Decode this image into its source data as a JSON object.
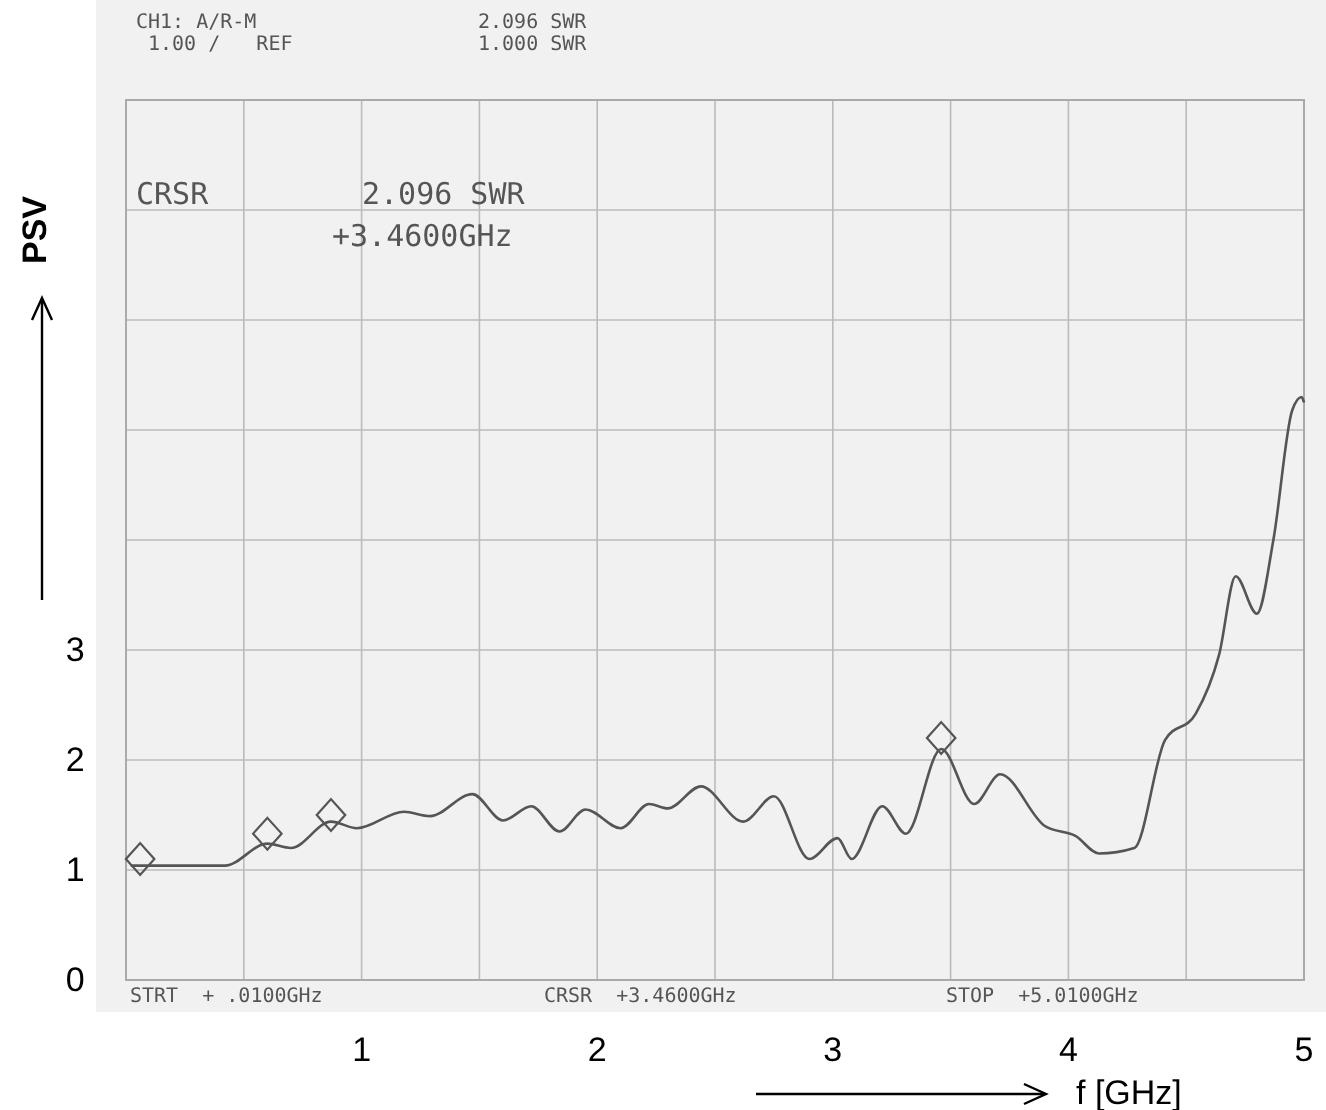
{
  "chart_data": {
    "type": "line",
    "xlabel": "f [GHz]",
    "ylabel": "PSV",
    "xlim": [
      0,
      5
    ],
    "ylim": [
      0,
      8
    ],
    "xticks": [
      {
        "value": 0.5,
        "label": null
      },
      1,
      {
        "value": 1.5,
        "label": null
      },
      2,
      {
        "value": 2.5,
        "label": null
      },
      3,
      {
        "value": 3.5,
        "label": null
      },
      4,
      {
        "value": 4.5,
        "label": null
      },
      5
    ],
    "yticks": [
      0,
      1,
      2,
      3,
      {
        "value": 4,
        "label": null
      },
      {
        "value": 5,
        "label": null
      },
      {
        "value": 6,
        "label": null
      },
      {
        "value": 7,
        "label": null
      },
      {
        "value": 8,
        "label": null
      }
    ],
    "grid": true,
    "series": [
      {
        "color": "#555555",
        "marker": "none",
        "x": [
          0.02,
          0.42,
          0.6,
          0.7,
          0.87,
          0.98,
          1.18,
          1.29,
          1.47,
          1.6,
          1.72,
          1.84,
          1.95,
          2.1,
          2.22,
          2.3,
          2.44,
          2.62,
          2.75,
          2.9,
          3.02,
          3.08,
          3.21,
          3.31,
          3.46,
          3.6,
          3.71,
          3.9,
          4.03,
          4.13,
          4.28,
          4.41,
          4.54,
          4.64,
          4.71,
          4.8,
          4.87,
          4.95,
          4.99,
          5.0
        ],
        "values": [
          1.04,
          1.04,
          1.24,
          1.2,
          1.44,
          1.38,
          1.53,
          1.49,
          1.69,
          1.45,
          1.58,
          1.35,
          1.55,
          1.38,
          1.6,
          1.56,
          1.76,
          1.44,
          1.67,
          1.1,
          1.29,
          1.1,
          1.58,
          1.33,
          2.1,
          1.6,
          1.87,
          1.4,
          1.31,
          1.15,
          1.2,
          2.18,
          2.42,
          2.96,
          3.67,
          3.33,
          4.0,
          5.18,
          5.3,
          5.25
        ]
      },
      {
        "type": "scatter",
        "color": "#555555",
        "marker": "diamond",
        "x": [
          0.06,
          0.6,
          0.87,
          3.46
        ],
        "values": [
          1.1,
          1.33,
          1.5,
          2.2
        ]
      }
    ],
    "annotations": [
      "CH1: A/R-M",
      "1.00 /   REF",
      "2.096 SWR",
      "1.000 SWR",
      "CRSR",
      "2.096 SWR",
      "+3.4600GHz",
      "STRT  + .0100GHz",
      "CRSR  +3.4600GHz",
      "STOP  +5.0100GHz"
    ]
  }
}
